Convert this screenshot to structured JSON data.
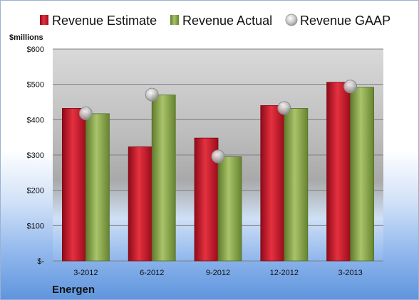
{
  "chart_data": {
    "type": "bar",
    "unit_label": "$millions",
    "footer_label": "Energen",
    "categories": [
      "3-2012",
      "6-2012",
      "9-2012",
      "12-2012",
      "3-2013"
    ],
    "series": [
      {
        "name": "Revenue Estimate",
        "kind": "bar",
        "color": "#c8102e",
        "values": [
          432,
          323,
          348,
          440,
          506
        ]
      },
      {
        "name": "Revenue Actual",
        "kind": "bar",
        "color": "#8aa84a",
        "values": [
          417,
          470,
          295,
          432,
          492
        ]
      },
      {
        "name": "Revenue GAAP",
        "kind": "marker",
        "color": "#c9c9c9",
        "values": [
          418,
          471,
          296,
          433,
          494
        ]
      }
    ],
    "ylim": [
      0,
      600
    ],
    "yticks": [
      0,
      100,
      200,
      300,
      400,
      500,
      600
    ],
    "ytick_labels": [
      "$-",
      "$100",
      "$200",
      "$300",
      "$400",
      "$500",
      "$600"
    ],
    "grid": true,
    "legend_position": "top"
  }
}
